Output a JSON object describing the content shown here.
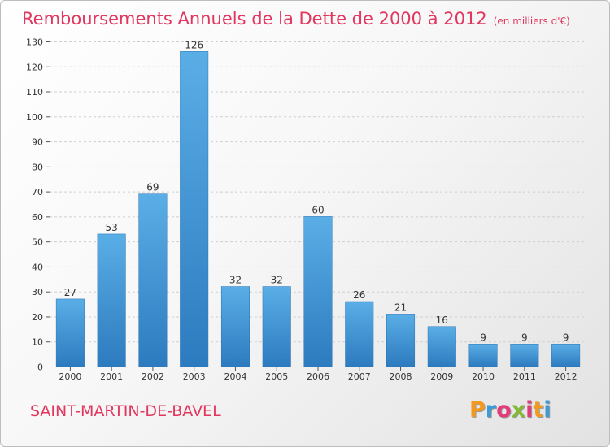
{
  "chart_title": "Remboursements Annuels de la Dette de 2000 à 2012",
  "chart_unit": "(en milliers d'€)",
  "commune": "SAINT-MARTIN-DE-BAVEL",
  "brand": {
    "letters": [
      "P",
      "r",
      "o",
      "x",
      "i",
      "t",
      "i"
    ],
    "colors": [
      "#f39a1e",
      "#3e9bd6",
      "#e43a7a",
      "#85b935",
      "#e43a7a",
      "#f39a1e",
      "#3e9bd6"
    ]
  },
  "colors": {
    "title": "#e2365e",
    "bar_top": "#5aaee6",
    "bar_bottom": "#2d7bbf",
    "grid": "#cfcfcf"
  },
  "chart_data": {
    "type": "bar",
    "title": "Remboursements Annuels de la Dette de 2000 à 2012",
    "subtitle": "(en milliers d'€)",
    "xlabel": "",
    "ylabel": "",
    "categories": [
      "2000",
      "2001",
      "2002",
      "2003",
      "2004",
      "2005",
      "2006",
      "2007",
      "2008",
      "2009",
      "2010",
      "2011",
      "2012"
    ],
    "values": [
      27,
      53,
      69,
      126,
      32,
      32,
      60,
      26,
      21,
      16,
      9,
      9,
      9
    ],
    "ylim": [
      0,
      130
    ],
    "yticks": [
      0,
      10,
      20,
      30,
      40,
      50,
      60,
      70,
      80,
      90,
      100,
      110,
      120,
      130
    ],
    "grid": true,
    "legend": "none",
    "data_labels": true
  }
}
